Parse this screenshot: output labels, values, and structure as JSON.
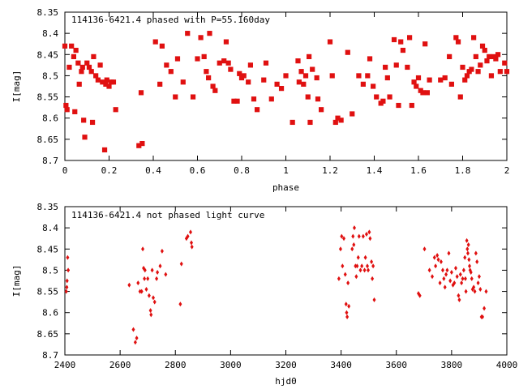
{
  "colors": {
    "points": "#e01010",
    "axes": "#000000",
    "background": "#ffffff"
  },
  "chart_data": [
    {
      "type": "scatter",
      "title": "114136-6421.4 phased with P=55.160day",
      "xlabel": "phase",
      "ylabel": "I[mag]",
      "xlim": [
        0,
        2
      ],
      "ylim": [
        8.35,
        8.7
      ],
      "y_inverted": true,
      "grid": false,
      "legend": "none",
      "xticks": [
        "0",
        "0.2",
        "0.4",
        "0.6",
        "0.8",
        "1",
        "1.2",
        "1.4",
        "1.6",
        "1.8",
        "2"
      ],
      "yticks": [
        "8.35",
        "8.4",
        "8.45",
        "8.5",
        "8.55",
        "8.6",
        "8.65",
        "8.7"
      ],
      "points": [
        [
          0.0,
          8.43
        ],
        [
          0.005,
          8.57
        ],
        [
          0.01,
          8.58
        ],
        [
          0.02,
          8.48
        ],
        [
          0.03,
          8.43
        ],
        [
          0.04,
          8.455
        ],
        [
          0.045,
          8.585
        ],
        [
          0.05,
          8.44
        ],
        [
          0.06,
          8.47
        ],
        [
          0.065,
          8.52
        ],
        [
          0.075,
          8.49
        ],
        [
          0.08,
          8.48
        ],
        [
          0.085,
          8.605
        ],
        [
          0.09,
          8.645
        ],
        [
          0.1,
          8.47
        ],
        [
          0.11,
          8.48
        ],
        [
          0.12,
          8.49
        ],
        [
          0.125,
          8.61
        ],
        [
          0.13,
          8.455
        ],
        [
          0.14,
          8.5
        ],
        [
          0.15,
          8.51
        ],
        [
          0.16,
          8.475
        ],
        [
          0.17,
          8.515
        ],
        [
          0.18,
          8.675
        ],
        [
          0.185,
          8.52
        ],
        [
          0.19,
          8.51
        ],
        [
          0.2,
          8.525
        ],
        [
          0.21,
          8.515
        ],
        [
          0.22,
          8.515
        ],
        [
          0.23,
          8.58
        ],
        [
          0.335,
          8.665
        ],
        [
          0.345,
          8.54
        ],
        [
          0.35,
          8.66
        ],
        [
          0.41,
          8.42
        ],
        [
          0.43,
          8.52
        ],
        [
          0.44,
          8.43
        ],
        [
          0.46,
          8.475
        ],
        [
          0.48,
          8.49
        ],
        [
          0.5,
          8.55
        ],
        [
          0.51,
          8.46
        ],
        [
          0.535,
          8.515
        ],
        [
          0.555,
          8.4
        ],
        [
          0.58,
          8.55
        ],
        [
          0.6,
          8.46
        ],
        [
          0.615,
          8.41
        ],
        [
          0.63,
          8.455
        ],
        [
          0.64,
          8.49
        ],
        [
          0.65,
          8.505
        ],
        [
          0.655,
          8.4
        ],
        [
          0.67,
          8.525
        ],
        [
          0.68,
          8.535
        ],
        [
          0.7,
          8.47
        ],
        [
          0.72,
          8.465
        ],
        [
          0.73,
          8.42
        ],
        [
          0.74,
          8.47
        ],
        [
          0.75,
          8.485
        ],
        [
          0.765,
          8.56
        ],
        [
          0.78,
          8.56
        ],
        [
          0.79,
          8.495
        ],
        [
          0.8,
          8.505
        ],
        [
          0.81,
          8.5
        ],
        [
          0.83,
          8.515
        ],
        [
          0.84,
          8.475
        ],
        [
          0.855,
          8.555
        ],
        [
          0.87,
          8.58
        ],
        [
          0.9,
          8.51
        ],
        [
          0.91,
          8.47
        ],
        [
          0.935,
          8.555
        ],
        [
          0.96,
          8.52
        ],
        [
          0.98,
          8.53
        ],
        [
          1.0,
          8.5
        ],
        [
          1.03,
          8.61
        ],
        [
          1.055,
          8.465
        ],
        [
          1.06,
          8.515
        ],
        [
          1.07,
          8.49
        ],
        [
          1.08,
          8.52
        ],
        [
          1.09,
          8.5
        ],
        [
          1.1,
          8.55
        ],
        [
          1.105,
          8.455
        ],
        [
          1.11,
          8.61
        ],
        [
          1.12,
          8.485
        ],
        [
          1.14,
          8.505
        ],
        [
          1.145,
          8.555
        ],
        [
          1.16,
          8.58
        ],
        [
          1.2,
          8.42
        ],
        [
          1.21,
          8.5
        ],
        [
          1.225,
          8.61
        ],
        [
          1.235,
          8.6
        ],
        [
          1.25,
          8.605
        ],
        [
          1.28,
          8.445
        ],
        [
          1.3,
          8.59
        ],
        [
          1.33,
          8.5
        ],
        [
          1.35,
          8.52
        ],
        [
          1.37,
          8.5
        ],
        [
          1.38,
          8.46
        ],
        [
          1.395,
          8.525
        ],
        [
          1.41,
          8.55
        ],
        [
          1.43,
          8.565
        ],
        [
          1.44,
          8.56
        ],
        [
          1.45,
          8.48
        ],
        [
          1.46,
          8.505
        ],
        [
          1.47,
          8.55
        ],
        [
          1.49,
          8.415
        ],
        [
          1.5,
          8.475
        ],
        [
          1.51,
          8.57
        ],
        [
          1.52,
          8.42
        ],
        [
          1.53,
          8.44
        ],
        [
          1.55,
          8.48
        ],
        [
          1.56,
          8.41
        ],
        [
          1.57,
          8.57
        ],
        [
          1.58,
          8.515
        ],
        [
          1.59,
          8.525
        ],
        [
          1.6,
          8.505
        ],
        [
          1.61,
          8.535
        ],
        [
          1.62,
          8.54
        ],
        [
          1.63,
          8.425
        ],
        [
          1.64,
          8.54
        ],
        [
          1.65,
          8.51
        ],
        [
          1.7,
          8.51
        ],
        [
          1.72,
          8.505
        ],
        [
          1.74,
          8.455
        ],
        [
          1.75,
          8.52
        ],
        [
          1.77,
          8.41
        ],
        [
          1.78,
          8.42
        ],
        [
          1.79,
          8.55
        ],
        [
          1.8,
          8.48
        ],
        [
          1.81,
          8.51
        ],
        [
          1.82,
          8.5
        ],
        [
          1.83,
          8.49
        ],
        [
          1.84,
          8.485
        ],
        [
          1.85,
          8.41
        ],
        [
          1.86,
          8.455
        ],
        [
          1.87,
          8.49
        ],
        [
          1.88,
          8.475
        ],
        [
          1.89,
          8.43
        ],
        [
          1.9,
          8.44
        ],
        [
          1.91,
          8.465
        ],
        [
          1.92,
          8.455
        ],
        [
          1.93,
          8.5
        ],
        [
          1.94,
          8.455
        ],
        [
          1.95,
          8.46
        ],
        [
          1.96,
          8.45
        ],
        [
          1.97,
          8.49
        ],
        [
          1.99,
          8.47
        ],
        [
          2.0,
          8.49
        ]
      ]
    },
    {
      "type": "scatter",
      "title": "114136-6421.4 not phased light curve",
      "xlabel": "hjd0",
      "ylabel": "I[mag]",
      "xlim": [
        2400,
        4000
      ],
      "ylim": [
        8.35,
        8.7
      ],
      "y_inverted": true,
      "grid": false,
      "legend": "none",
      "xticks": [
        "2400",
        "2600",
        "2800",
        "3000",
        "3200",
        "3400",
        "3600",
        "3800",
        "4000"
      ],
      "yticks": [
        "8.35",
        "8.4",
        "8.45",
        "8.5",
        "8.55",
        "8.6",
        "8.65",
        "8.7"
      ],
      "points": [
        [
          2405,
          8.55
        ],
        [
          2407,
          8.54
        ],
        [
          2408,
          8.525
        ],
        [
          2410,
          8.47
        ],
        [
          2412,
          8.5
        ],
        [
          2633,
          8.535
        ],
        [
          2648,
          8.64
        ],
        [
          2655,
          8.67
        ],
        [
          2660,
          8.66
        ],
        [
          2665,
          8.53
        ],
        [
          2672,
          8.55
        ],
        [
          2678,
          8.55
        ],
        [
          2682,
          8.45
        ],
        [
          2685,
          8.495
        ],
        [
          2688,
          8.52
        ],
        [
          2690,
          8.5
        ],
        [
          2695,
          8.545
        ],
        [
          2700,
          8.52
        ],
        [
          2705,
          8.56
        ],
        [
          2710,
          8.595
        ],
        [
          2712,
          8.605
        ],
        [
          2716,
          8.5
        ],
        [
          2720,
          8.565
        ],
        [
          2725,
          8.575
        ],
        [
          2732,
          8.52
        ],
        [
          2735,
          8.505
        ],
        [
          2745,
          8.49
        ],
        [
          2752,
          8.455
        ],
        [
          2765,
          8.51
        ],
        [
          2818,
          8.58
        ],
        [
          2822,
          8.485
        ],
        [
          2840,
          8.425
        ],
        [
          2845,
          8.42
        ],
        [
          2855,
          8.41
        ],
        [
          2858,
          8.435
        ],
        [
          2860,
          8.445
        ],
        [
          3392,
          8.52
        ],
        [
          3398,
          8.45
        ],
        [
          3402,
          8.42
        ],
        [
          3405,
          8.49
        ],
        [
          3410,
          8.425
        ],
        [
          3415,
          8.51
        ],
        [
          3418,
          8.58
        ],
        [
          3420,
          8.6
        ],
        [
          3422,
          8.61
        ],
        [
          3425,
          8.53
        ],
        [
          3428,
          8.585
        ],
        [
          3440,
          8.45
        ],
        [
          3443,
          8.42
        ],
        [
          3446,
          8.44
        ],
        [
          3448,
          8.4
        ],
        [
          3452,
          8.49
        ],
        [
          3455,
          8.515
        ],
        [
          3458,
          8.49
        ],
        [
          3462,
          8.47
        ],
        [
          3465,
          8.42
        ],
        [
          3470,
          8.5
        ],
        [
          3475,
          8.49
        ],
        [
          3480,
          8.42
        ],
        [
          3485,
          8.5
        ],
        [
          3488,
          8.47
        ],
        [
          3492,
          8.415
        ],
        [
          3495,
          8.49
        ],
        [
          3498,
          8.5
        ],
        [
          3502,
          8.41
        ],
        [
          3505,
          8.425
        ],
        [
          3510,
          8.48
        ],
        [
          3513,
          8.52
        ],
        [
          3516,
          8.49
        ],
        [
          3520,
          8.57
        ],
        [
          3680,
          8.555
        ],
        [
          3685,
          8.56
        ],
        [
          3702,
          8.45
        ],
        [
          3720,
          8.5
        ],
        [
          3730,
          8.515
        ],
        [
          3738,
          8.47
        ],
        [
          3742,
          8.49
        ],
        [
          3748,
          8.465
        ],
        [
          3752,
          8.475
        ],
        [
          3758,
          8.53
        ],
        [
          3762,
          8.48
        ],
        [
          3768,
          8.5
        ],
        [
          3772,
          8.52
        ],
        [
          3776,
          8.54
        ],
        [
          3780,
          8.51
        ],
        [
          3784,
          8.5
        ],
        [
          3790,
          8.46
        ],
        [
          3795,
          8.525
        ],
        [
          3800,
          8.505
        ],
        [
          3805,
          8.535
        ],
        [
          3810,
          8.53
        ],
        [
          3815,
          8.495
        ],
        [
          3820,
          8.515
        ],
        [
          3825,
          8.56
        ],
        [
          3828,
          8.57
        ],
        [
          3832,
          8.51
        ],
        [
          3836,
          8.53
        ],
        [
          3840,
          8.52
        ],
        [
          3844,
          8.5
        ],
        [
          3848,
          8.47
        ],
        [
          3850,
          8.52
        ],
        [
          3852,
          8.55
        ],
        [
          3855,
          8.43
        ],
        [
          3857,
          8.45
        ],
        [
          3859,
          8.46
        ],
        [
          3861,
          8.44
        ],
        [
          3863,
          8.475
        ],
        [
          3865,
          8.49
        ],
        [
          3867,
          8.5
        ],
        [
          3870,
          8.505
        ],
        [
          3873,
          8.52
        ],
        [
          3876,
          8.545
        ],
        [
          3880,
          8.54
        ],
        [
          3884,
          8.55
        ],
        [
          3888,
          8.46
        ],
        [
          3892,
          8.48
        ],
        [
          3896,
          8.53
        ],
        [
          3900,
          8.515
        ],
        [
          3904,
          8.545
        ],
        [
          3908,
          8.61
        ],
        [
          3912,
          8.61
        ],
        [
          3918,
          8.59
        ],
        [
          3925,
          8.55
        ]
      ]
    }
  ]
}
